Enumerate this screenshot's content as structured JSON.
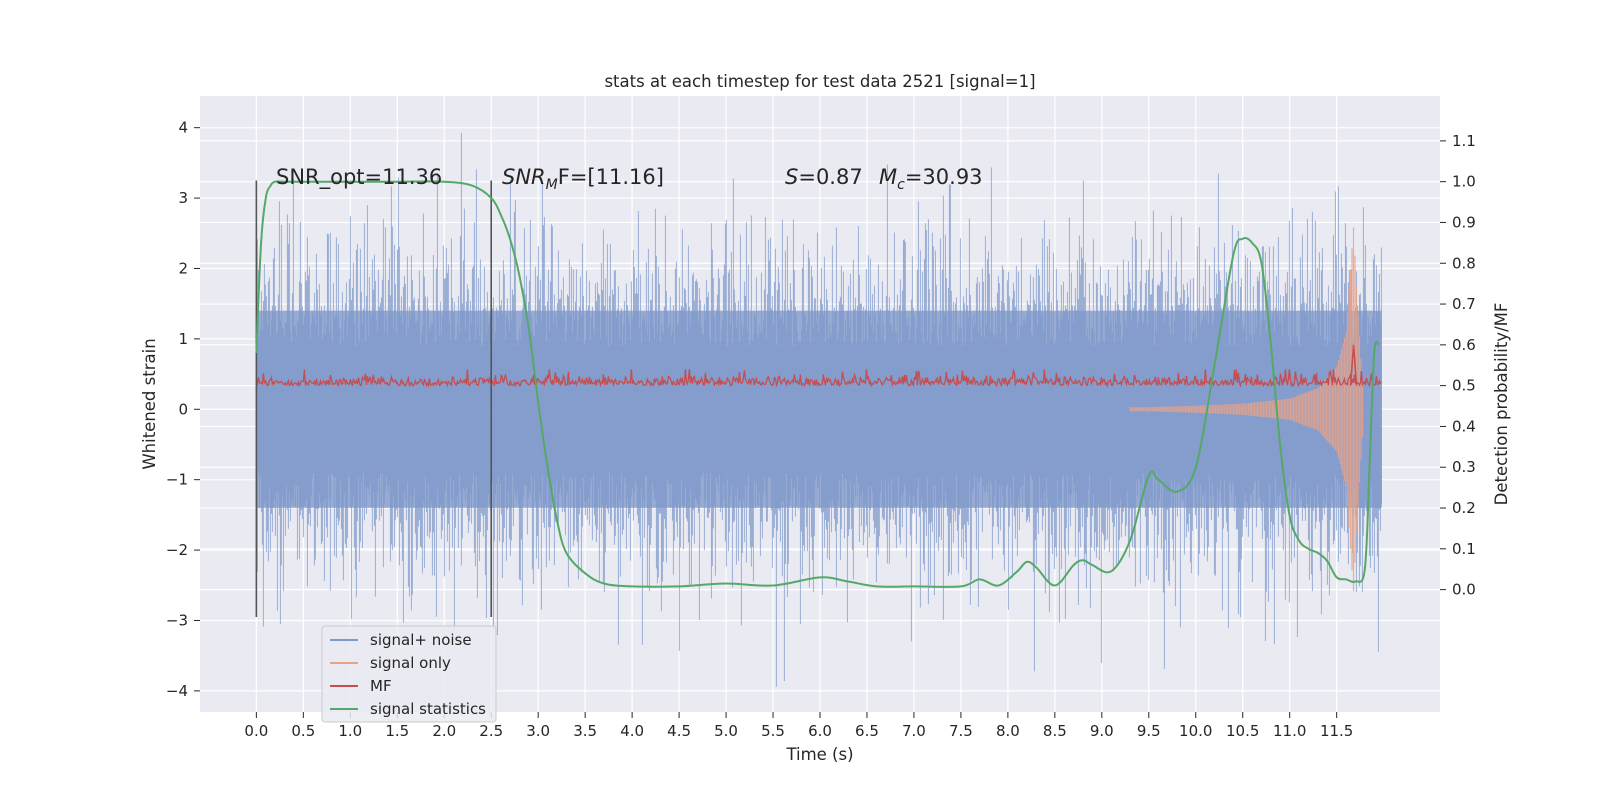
{
  "chart_data": {
    "type": "line",
    "title": "stats at each timestep for test data 2521 [signal=1]",
    "xlabel": "Time (s)",
    "ylabel_left": "Whitened strain",
    "ylabel_right": "Detection probability/MF",
    "xlim": [
      -0.6,
      12.6
    ],
    "ylim_left": [
      -4.3,
      4.45
    ],
    "ylim_right": [
      -0.3,
      1.21
    ],
    "x_ticks": [
      "0.0",
      "0.5",
      "1.0",
      "1.5",
      "2.0",
      "2.5",
      "3.0",
      "3.5",
      "4.0",
      "4.5",
      "5.0",
      "5.5",
      "6.0",
      "6.5",
      "7.0",
      "7.5",
      "8.0",
      "8.5",
      "9.0",
      "9.5",
      "10.0",
      "10.5",
      "11.0",
      "11.5"
    ],
    "y_ticks_left": [
      "−4",
      "−3",
      "−2",
      "−1",
      "0",
      "1",
      "2",
      "3",
      "4"
    ],
    "y_ticks_right": [
      "0.0",
      "0.1",
      "0.2",
      "0.3",
      "0.4",
      "0.5",
      "0.6",
      "0.7",
      "0.8",
      "0.9",
      "1.0",
      "1.1"
    ],
    "grid": true,
    "legend_position": "lower-left",
    "annotations": {
      "snr_opt": "SNR_opt=11.36",
      "snr_mf_prefix": "SNR",
      "snr_mf_sub": "M",
      "snr_mf_rest": "F=[11.16]",
      "s_prefix": "S",
      "s_value": "=0.87",
      "mc_prefix": "M",
      "mc_sub": "c",
      "mc_value": "=30.93"
    },
    "markers": [
      0.0,
      2.5
    ],
    "series": [
      {
        "name": "signal+ noise",
        "axis": "left",
        "color": "#7f99c9",
        "band": {
          "x_start": 0.0,
          "x_end": 11.98,
          "typical_abs": 1.4,
          "max_abs": 4.1
        }
      },
      {
        "name": "signal only",
        "axis": "left",
        "color": "#e8a286",
        "envelope": {
          "x": [
            0.0,
            9.5,
            10.0,
            10.5,
            11.0,
            11.3,
            11.5,
            11.6,
            11.68,
            11.72,
            11.78
          ],
          "amp": [
            0.02,
            0.03,
            0.05,
            0.08,
            0.15,
            0.3,
            0.6,
            1.1,
            2.6,
            1.5,
            0.3
          ]
        }
      },
      {
        "name": "MF",
        "axis": "right",
        "color": "#c44e52",
        "baseline": 0.5,
        "typical_max": 0.54,
        "peak": {
          "x": 11.68,
          "value": 0.6
        }
      },
      {
        "name": "signal statistics",
        "axis": "right",
        "color": "#55a868",
        "x": [
          0.0,
          0.05,
          0.1,
          0.15,
          0.2,
          0.3,
          0.5,
          1.0,
          1.5,
          2.0,
          2.3,
          2.5,
          2.6,
          2.7,
          2.8,
          2.9,
          3.0,
          3.1,
          3.2,
          3.3,
          3.5,
          3.7,
          4.0,
          4.5,
          5.0,
          5.5,
          6.0,
          6.3,
          6.6,
          7.0,
          7.5,
          7.7,
          7.9,
          8.1,
          8.2,
          8.3,
          8.5,
          8.7,
          8.8,
          8.9,
          9.1,
          9.3,
          9.5,
          9.6,
          9.8,
          10.0,
          10.2,
          10.4,
          10.5,
          10.6,
          10.7,
          10.8,
          10.9,
          11.0,
          11.1,
          11.2,
          11.3,
          11.4,
          11.5,
          11.6,
          11.7,
          11.8,
          11.85,
          11.9,
          11.95
        ],
        "values": [
          0.58,
          0.85,
          0.96,
          0.99,
          1.0,
          1.0,
          1.0,
          1.0,
          1.0,
          1.0,
          0.99,
          0.96,
          0.92,
          0.86,
          0.77,
          0.64,
          0.46,
          0.3,
          0.17,
          0.09,
          0.04,
          0.015,
          0.008,
          0.008,
          0.015,
          0.01,
          0.03,
          0.02,
          0.008,
          0.008,
          0.008,
          0.025,
          0.01,
          0.045,
          0.068,
          0.055,
          0.01,
          0.06,
          0.072,
          0.06,
          0.045,
          0.12,
          0.28,
          0.27,
          0.24,
          0.3,
          0.55,
          0.82,
          0.86,
          0.85,
          0.8,
          0.6,
          0.35,
          0.18,
          0.12,
          0.1,
          0.09,
          0.07,
          0.03,
          0.025,
          0.02,
          0.05,
          0.3,
          0.58,
          0.6
        ]
      }
    ],
    "legend": [
      "signal+ noise",
      "signal only",
      "MF",
      "signal statistics"
    ]
  }
}
